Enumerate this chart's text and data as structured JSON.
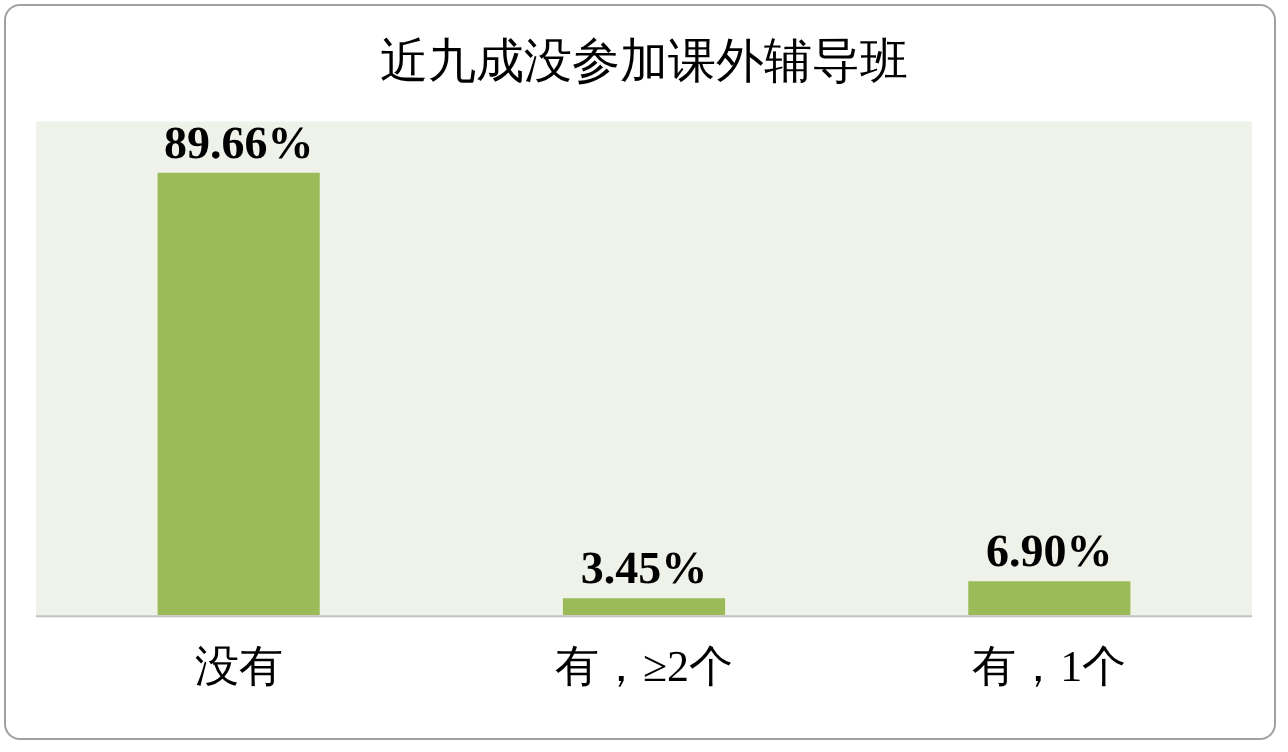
{
  "chart_data": {
    "type": "bar",
    "title": "近九成没参加课外辅导班",
    "categories": [
      "没有",
      "有，≥2个",
      "有，1个"
    ],
    "values": [
      89.66,
      3.45,
      6.9
    ],
    "value_labels": [
      "89.66%",
      "3.45%",
      "6.90%"
    ],
    "color": "#9bbb59",
    "ylim": [
      0,
      100
    ],
    "tick_labels": "x",
    "grid": false,
    "legend": false
  }
}
